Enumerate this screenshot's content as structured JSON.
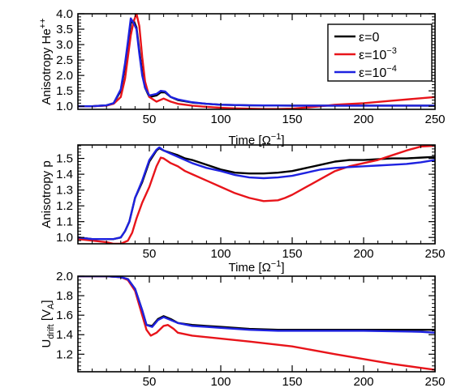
{
  "figure": {
    "background": "#ffffff"
  },
  "chart_data": [
    {
      "type": "line",
      "title": "",
      "xlabel": "Time [Ω⁻¹]",
      "ylabel": "Anisotropy He⁺⁺",
      "xlim": [
        0,
        250
      ],
      "ylim": [
        0.9,
        4.0
      ],
      "xticks": [
        50,
        100,
        150,
        200,
        250
      ],
      "xticklabels": [
        "50",
        "100",
        "150",
        "200",
        "250"
      ],
      "yticks": [
        1.0,
        1.5,
        2.0,
        2.5,
        3.0,
        3.5,
        4.0
      ],
      "yticklabels": [
        "1.0",
        "1.5",
        "2.0",
        "2.5",
        "3.0",
        "3.5",
        "4.0"
      ],
      "grid": false,
      "legend": "top-right",
      "series": [
        {
          "name": "ε=0",
          "color": "#000000",
          "x": [
            0,
            10,
            20,
            25,
            30,
            33,
            35,
            37,
            39,
            41,
            43,
            45,
            47,
            50,
            55,
            58,
            61,
            65,
            70,
            80,
            90,
            100,
            120,
            150,
            200,
            250
          ],
          "y": [
            1.0,
            1.0,
            1.03,
            1.1,
            1.5,
            2.3,
            3.0,
            3.7,
            3.78,
            3.55,
            2.8,
            2.1,
            1.6,
            1.3,
            1.35,
            1.45,
            1.45,
            1.3,
            1.2,
            1.12,
            1.08,
            1.05,
            1.03,
            1.02,
            1.02,
            1.02
          ]
        },
        {
          "name": "ε=10⁻³",
          "color": "#e8141a",
          "x": [
            0,
            10,
            20,
            25,
            30,
            33,
            35,
            37,
            39,
            41,
            43,
            45,
            47,
            50,
            55,
            60,
            65,
            70,
            80,
            90,
            100,
            110,
            120,
            130,
            140,
            150,
            160,
            170,
            180,
            200,
            220,
            240,
            250
          ],
          "y": [
            1.0,
            1.0,
            1.02,
            1.08,
            1.3,
            1.9,
            2.6,
            3.3,
            3.75,
            4.0,
            3.6,
            2.6,
            1.8,
            1.3,
            1.15,
            1.25,
            1.15,
            1.08,
            1.02,
            0.98,
            0.95,
            0.93,
            0.92,
            0.91,
            0.91,
            0.92,
            0.96,
            1.0,
            1.05,
            1.1,
            1.18,
            1.26,
            1.3
          ]
        },
        {
          "name": "ε=10⁻⁴",
          "color": "#1e22e0",
          "x": [
            0,
            10,
            20,
            25,
            30,
            33,
            35,
            37,
            39,
            41,
            43,
            45,
            47,
            50,
            55,
            58,
            61,
            65,
            70,
            80,
            90,
            100,
            120,
            150,
            200,
            250
          ],
          "y": [
            1.0,
            1.0,
            1.03,
            1.1,
            1.55,
            2.4,
            3.1,
            3.85,
            3.7,
            3.5,
            2.7,
            2.0,
            1.6,
            1.35,
            1.4,
            1.5,
            1.48,
            1.3,
            1.22,
            1.13,
            1.08,
            1.05,
            1.03,
            1.02,
            1.02,
            1.02
          ]
        }
      ]
    },
    {
      "type": "line",
      "title": "",
      "xlabel": "Time [Ω⁻¹]",
      "ylabel": "Anisotropy p",
      "xlim": [
        0,
        250
      ],
      "ylim": [
        0.96,
        1.585
      ],
      "xticks": [
        50,
        100,
        150,
        200,
        250
      ],
      "xticklabels": [
        "50",
        "100",
        "150",
        "200",
        "250"
      ],
      "yticks": [
        1.0,
        1.1,
        1.2,
        1.3,
        1.4,
        1.5
      ],
      "yticklabels": [
        "1.0",
        "1.1",
        "1.2",
        "1.3",
        "1.4",
        "1.5"
      ],
      "grid": false,
      "series": [
        {
          "name": "ε=0",
          "color": "#000000",
          "x": [
            0,
            10,
            20,
            25,
            30,
            33,
            36,
            40,
            45,
            50,
            55,
            57,
            60,
            65,
            70,
            75,
            80,
            90,
            100,
            110,
            120,
            130,
            140,
            150,
            160,
            170,
            180,
            190,
            200,
            210,
            220,
            230,
            240,
            250
          ],
          "y": [
            1.0,
            0.99,
            0.99,
            0.99,
            1.0,
            1.04,
            1.1,
            1.25,
            1.35,
            1.48,
            1.55,
            1.565,
            1.55,
            1.535,
            1.52,
            1.5,
            1.49,
            1.46,
            1.43,
            1.41,
            1.405,
            1.405,
            1.41,
            1.42,
            1.44,
            1.46,
            1.48,
            1.49,
            1.49,
            1.495,
            1.5,
            1.5,
            1.505,
            1.51
          ]
        },
        {
          "name": "ε=10⁻³",
          "color": "#e8141a",
          "x": [
            0,
            10,
            20,
            25,
            30,
            35,
            38,
            41,
            45,
            50,
            55,
            58,
            60,
            65,
            70,
            75,
            80,
            90,
            100,
            110,
            120,
            130,
            140,
            145,
            150,
            160,
            170,
            180,
            190,
            200,
            210,
            220,
            230,
            240,
            250
          ],
          "y": [
            0.99,
            0.98,
            0.97,
            0.96,
            0.96,
            0.98,
            1.03,
            1.12,
            1.22,
            1.32,
            1.45,
            1.505,
            1.5,
            1.47,
            1.45,
            1.42,
            1.4,
            1.36,
            1.32,
            1.28,
            1.25,
            1.23,
            1.235,
            1.25,
            1.27,
            1.32,
            1.37,
            1.42,
            1.45,
            1.47,
            1.49,
            1.52,
            1.55,
            1.575,
            1.58
          ]
        },
        {
          "name": "ε=10⁻⁴",
          "color": "#1e22e0",
          "x": [
            0,
            10,
            20,
            25,
            30,
            33,
            36,
            40,
            45,
            50,
            55,
            57,
            60,
            65,
            70,
            75,
            80,
            90,
            100,
            110,
            120,
            130,
            140,
            150,
            160,
            170,
            180,
            190,
            200,
            210,
            220,
            230,
            240,
            250
          ],
          "y": [
            1.0,
            0.99,
            0.99,
            0.99,
            1.0,
            1.04,
            1.1,
            1.25,
            1.36,
            1.49,
            1.555,
            1.57,
            1.55,
            1.53,
            1.51,
            1.49,
            1.47,
            1.44,
            1.42,
            1.395,
            1.38,
            1.375,
            1.38,
            1.39,
            1.41,
            1.43,
            1.44,
            1.445,
            1.45,
            1.455,
            1.46,
            1.465,
            1.475,
            1.49
          ]
        }
      ]
    },
    {
      "type": "line",
      "title": "",
      "xlabel": "",
      "ylabel": "Udrift [VA]",
      "ylabel_parts": {
        "main": "U",
        "sub": "drift",
        "unit_open": "[V",
        "unit_sub": "A",
        "unit_close": "]"
      },
      "xlim": [
        0,
        250
      ],
      "ylim": [
        1.02,
        2.0
      ],
      "xticks": [
        50,
        100,
        150,
        200,
        250
      ],
      "xticklabels": [
        "50",
        "100",
        "150",
        "200",
        "250"
      ],
      "yticks": [
        1.2,
        1.4,
        1.6,
        1.8,
        2.0
      ],
      "yticklabels": [
        "1.2",
        "1.4",
        "1.6",
        "1.8",
        "2.0"
      ],
      "grid": false,
      "series": [
        {
          "name": "ε=0",
          "color": "#000000",
          "x": [
            0,
            20,
            30,
            35,
            40,
            45,
            48,
            52,
            56,
            60,
            65,
            70,
            80,
            90,
            100,
            120,
            140,
            160,
            200,
            250
          ],
          "y": [
            2.0,
            2.0,
            1.99,
            1.97,
            1.87,
            1.65,
            1.5,
            1.49,
            1.56,
            1.59,
            1.56,
            1.52,
            1.5,
            1.49,
            1.48,
            1.46,
            1.45,
            1.45,
            1.45,
            1.45
          ]
        },
        {
          "name": "ε=10⁻³",
          "color": "#e8141a",
          "x": [
            0,
            20,
            30,
            35,
            40,
            45,
            48,
            51,
            55,
            60,
            63,
            67,
            70,
            80,
            100,
            120,
            150,
            180,
            200,
            220,
            240,
            250
          ],
          "y": [
            2.0,
            2.0,
            1.99,
            1.96,
            1.85,
            1.6,
            1.45,
            1.39,
            1.42,
            1.49,
            1.5,
            1.46,
            1.42,
            1.39,
            1.36,
            1.33,
            1.28,
            1.2,
            1.15,
            1.1,
            1.06,
            1.04
          ]
        },
        {
          "name": "ε=10⁻⁴",
          "color": "#1e22e0",
          "x": [
            0,
            20,
            30,
            35,
            40,
            45,
            48,
            52,
            56,
            60,
            65,
            70,
            80,
            90,
            100,
            120,
            140,
            160,
            200,
            240,
            250
          ],
          "y": [
            2.0,
            2.0,
            1.99,
            1.97,
            1.87,
            1.65,
            1.5,
            1.48,
            1.55,
            1.58,
            1.55,
            1.52,
            1.49,
            1.48,
            1.47,
            1.45,
            1.44,
            1.44,
            1.44,
            1.43,
            1.42
          ]
        }
      ]
    }
  ],
  "legend": {
    "entries": [
      {
        "label_parts": [
          "ε=0"
        ],
        "color": "#000000"
      },
      {
        "label_parts": [
          "ε=10",
          "−3"
        ],
        "color": "#e8141a"
      },
      {
        "label_parts": [
          "ε=10",
          "−4"
        ],
        "color": "#1e22e0"
      }
    ]
  },
  "text": {
    "ylabel1_main": "Anisotropy He",
    "ylabel1_sup": "++",
    "ylabel2": "Anisotropy p",
    "time_label_main": "Time [Ω",
    "time_label_sup": "−1",
    "time_label_close": "]",
    "udrift_main": "U",
    "udrift_sub": "drift",
    "udrift_unit_open": " [V",
    "udrift_unit_sub": "A",
    "udrift_unit_close": "]"
  }
}
